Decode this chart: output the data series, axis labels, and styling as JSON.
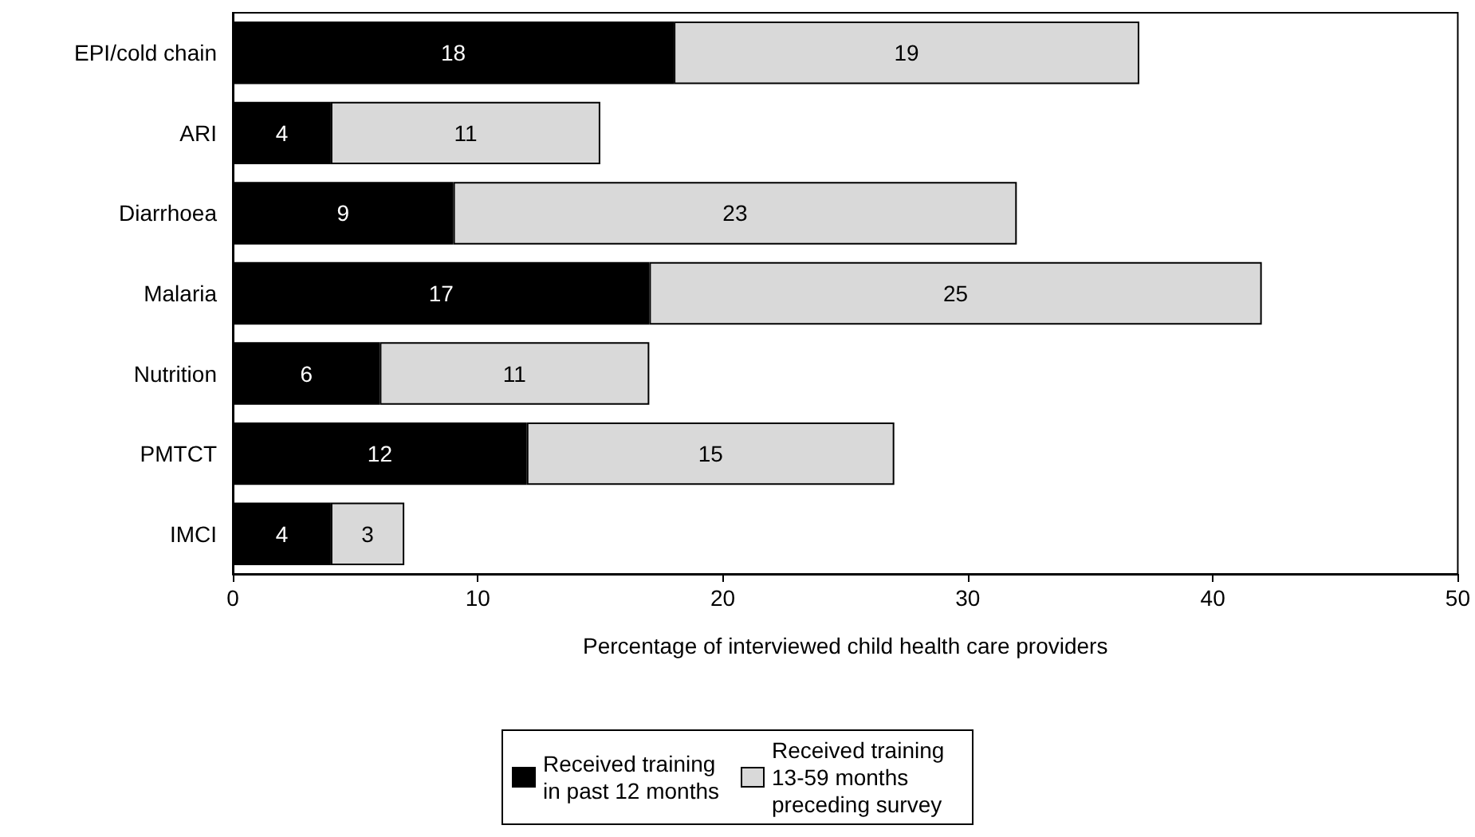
{
  "chart_data": {
    "type": "bar",
    "orientation": "horizontal",
    "stacked": true,
    "categories": [
      "EPI/cold chain",
      "ARI",
      "Diarrhoea",
      "Malaria",
      "Nutrition",
      "PMTCT",
      "IMCI"
    ],
    "series": [
      {
        "name": "Received training in past 12 months",
        "color": "#000000",
        "values": [
          18,
          4,
          9,
          17,
          6,
          12,
          4
        ]
      },
      {
        "name": "Received training 13-59 months preceding survey",
        "color": "#d9d9d9",
        "values": [
          19,
          11,
          23,
          25,
          11,
          15,
          3
        ]
      }
    ],
    "xlabel": "Percentage of interviewed child health care providers",
    "xlim": [
      0,
      50
    ],
    "xticks": [
      0,
      10,
      20,
      30,
      40,
      50
    ],
    "data_labels": true,
    "grid": false,
    "legend": "bottom"
  }
}
